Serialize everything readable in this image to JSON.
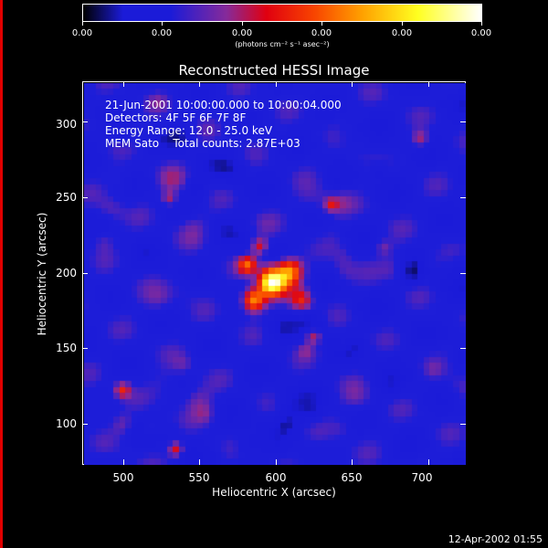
{
  "colorbar": {
    "tick_labels": [
      "0.00",
      "0.00",
      "0.00",
      "0.00",
      "0.00",
      "0.00"
    ],
    "units_label": "(photons cm⁻² s⁻¹ asec⁻²)"
  },
  "plot": {
    "title": "Reconstructed HESSI Image",
    "info_lines": [
      "21-Jun-2001 10:00:00.000 to 10:00:04.000",
      "Detectors: 4F 5F 6F 7F 8F",
      "Energy Range: 12.0 - 25.0 keV",
      "MEM Sato    Total counts: 2.87E+03"
    ],
    "xlabel": "Heliocentric X (arcsec)",
    "ylabel": "Heliocentric Y (arcsec)",
    "x_ticks": [
      "500",
      "550",
      "600",
      "650",
      "700"
    ],
    "y_ticks": [
      "100",
      "150",
      "200",
      "250",
      "300"
    ]
  },
  "footer": {
    "timestamp": "12-Apr-2002 01:55"
  },
  "colors": {
    "background": "#000000",
    "left_edge": "#e10000",
    "colortable": [
      "#000000",
      "#1b1bd8",
      "#4a3bd6",
      "#862a9a",
      "#c5142c",
      "#f83a00",
      "#ff9a00",
      "#ffff20",
      "#ffffff"
    ]
  }
}
